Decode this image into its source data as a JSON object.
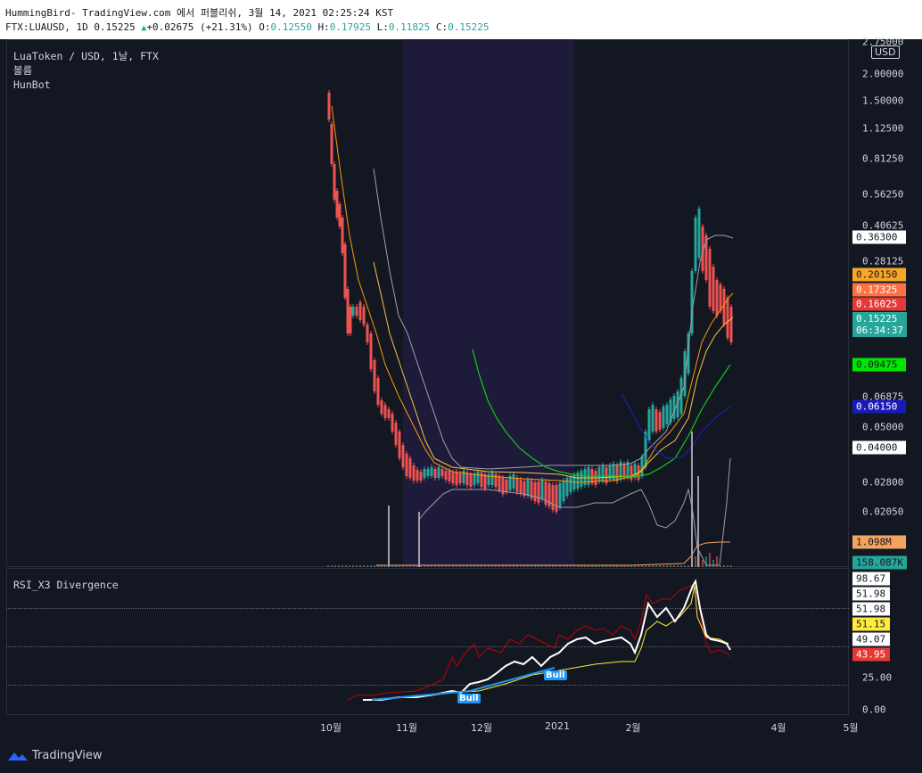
{
  "header": {
    "title_line": "HummingBird- TradingView.com 에서 퍼블리쉬, 3월 14, 2021 02:25:24 KST",
    "symbol": "FTX:LUAUSD, 1D 0.15225",
    "change": "+0.02675 (+21.31%)",
    "open_label": "O:",
    "open": "0.12550",
    "high_label": "H:",
    "high": "0.17925",
    "low_label": "L:",
    "low": "0.11825",
    "close_label": "C:",
    "close": "0.15225"
  },
  "legend": {
    "pair": "LuaToken / USD, 1날, FTX",
    "volume": "볼륨",
    "indicator": "HunBot"
  },
  "rsi_legend": "RSI_X3 Divergence",
  "currency_button": "USD",
  "price_ticks": [
    "2.75000",
    "2.00000",
    "1.50000",
    "1.12500",
    "0.81250",
    "0.56250",
    "0.40625",
    "0.28125",
    "0.05000",
    "0.02800",
    "0.02050"
  ],
  "price_tags": [
    {
      "value": "0.36300",
      "bg": "#ffffff",
      "fg": "#131722"
    },
    {
      "value": "0.20150",
      "bg": "#f9a825",
      "fg": "#131722"
    },
    {
      "value": "0.17325",
      "bg": "#ff7043",
      "fg": "#ffffff"
    },
    {
      "value": "0.16025",
      "bg": "#e53935",
      "fg": "#ffffff"
    },
    {
      "value": "0.15225",
      "sub": "06:34:37",
      "bg": "#26a69a",
      "fg": "#ffffff"
    },
    {
      "value": "0.09475",
      "bg": "#00e600",
      "fg": "#131722"
    },
    {
      "value": "0.06875",
      "plain": true
    },
    {
      "value": "0.06150",
      "bg": "#1a1ab8",
      "fg": "#ffffff"
    },
    {
      "value": "0.04000",
      "bg": "#ffffff",
      "fg": "#131722"
    },
    {
      "value": "1.098M",
      "bg": "#f4a460",
      "fg": "#131722"
    },
    {
      "value": "158.087K",
      "bg": "#26a69a",
      "fg": "#131722"
    }
  ],
  "rsi_ticks": [
    {
      "value": "98.67",
      "bg": "#ffffff",
      "fg": "#131722"
    },
    {
      "value": "51.98",
      "bg": "#ffffff",
      "fg": "#131722"
    },
    {
      "value": "51.98",
      "bg": "#ffffff",
      "fg": "#131722"
    },
    {
      "value": "51.15",
      "bg": "#ffeb3b",
      "fg": "#131722"
    },
    {
      "value": "49.07",
      "bg": "#ffffff",
      "fg": "#131722"
    },
    {
      "value": "43.95",
      "bg": "#e53935",
      "fg": "#ffffff"
    },
    {
      "value": "25.00",
      "plain": true
    },
    {
      "value": "0.00",
      "plain": true
    }
  ],
  "x_ticks": [
    "10월",
    "11월",
    "12월",
    "2021",
    "2월",
    "4월",
    "5월"
  ],
  "bull_labels": [
    "Bull",
    "Bull"
  ],
  "footer_brand": "TradingView",
  "colors": {
    "up": "#26a69a",
    "down": "#ef5350",
    "bg": "#131722",
    "highlight": "#1e1b3a"
  }
}
